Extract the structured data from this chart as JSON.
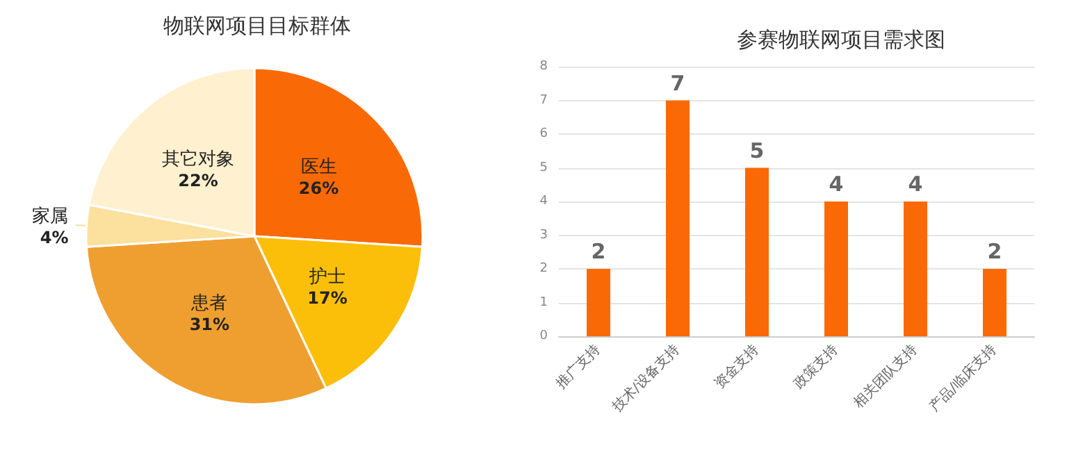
{
  "chart_data": [
    {
      "type": "pie",
      "title": "物联网项目目标群体",
      "categories": [
        "医生",
        "护士",
        "患者",
        "家属",
        "其它对象"
      ],
      "values": [
        26,
        17,
        31,
        4,
        22
      ],
      "colors": [
        "#f96a06",
        "#fbbf0a",
        "#ef9f30",
        "#fbe09e",
        "#fff0cf"
      ],
      "value_labels": [
        "26%",
        "17%",
        "31%",
        "4%",
        "22%"
      ]
    },
    {
      "type": "bar",
      "title": "参赛物联网项目需求图",
      "categories": [
        "推广支持",
        "技术/设备支持",
        "资金支持",
        "政策支持",
        "相关团队支持",
        "产品/临床支持"
      ],
      "values": [
        2,
        7,
        5,
        4,
        4,
        2
      ],
      "color": "#f96a06",
      "ylim": [
        0,
        8
      ],
      "yticks": [
        0,
        1,
        2,
        3,
        4,
        5,
        6,
        7,
        8
      ],
      "grid": "y",
      "data_labels": true
    }
  ]
}
